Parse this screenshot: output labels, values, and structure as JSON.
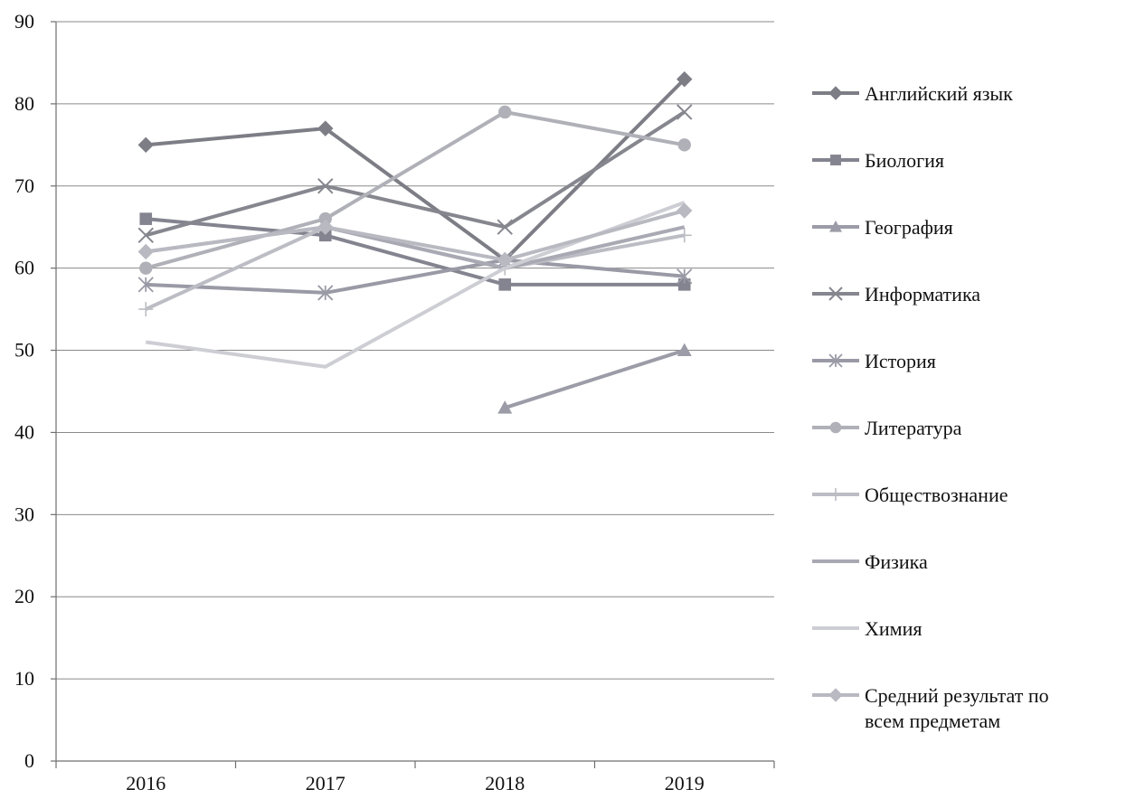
{
  "chart_data": {
    "type": "line",
    "title": "",
    "xlabel": "",
    "ylabel": "",
    "categories": [
      "2016",
      "2017",
      "2018",
      "2019"
    ],
    "ylim": [
      0,
      90
    ],
    "yticks": [
      0,
      10,
      20,
      30,
      40,
      50,
      60,
      70,
      80,
      90
    ],
    "grid": true,
    "legend_position": "right",
    "series": [
      {
        "name": "Английский язык",
        "values": [
          75,
          77,
          61,
          83
        ],
        "color": "#7d7d86",
        "marker": "diamond"
      },
      {
        "name": "Биология",
        "values": [
          66,
          64,
          58,
          58
        ],
        "color": "#848490",
        "marker": "square"
      },
      {
        "name": "География",
        "values": [
          null,
          null,
          43,
          50
        ],
        "color": "#9c9ca8",
        "marker": "triangle"
      },
      {
        "name": "Информатика",
        "values": [
          64,
          70,
          65,
          79
        ],
        "color": "#86868f",
        "marker": "x"
      },
      {
        "name": "История",
        "values": [
          58,
          57,
          61,
          59
        ],
        "color": "#9a9aa6",
        "marker": "asterisk"
      },
      {
        "name": "Литература",
        "values": [
          60,
          66,
          79,
          75
        ],
        "color": "#b0b0b8",
        "marker": "circle"
      },
      {
        "name": "Обществознание",
        "values": [
          55,
          65,
          60,
          64
        ],
        "color": "#bcbcc4",
        "marker": "plus"
      },
      {
        "name": "Физика",
        "values": [
          62,
          65,
          60,
          65
        ],
        "color": "#a9a9b4",
        "marker": "none"
      },
      {
        "name": "Химия",
        "values": [
          51,
          48,
          60,
          68
        ],
        "color": "#cdcdd4",
        "marker": "none"
      },
      {
        "name": "Средний результат по всем предметам",
        "values": [
          62,
          65,
          61,
          67
        ],
        "color": "#b9b9c2",
        "marker": "diamond"
      }
    ]
  }
}
